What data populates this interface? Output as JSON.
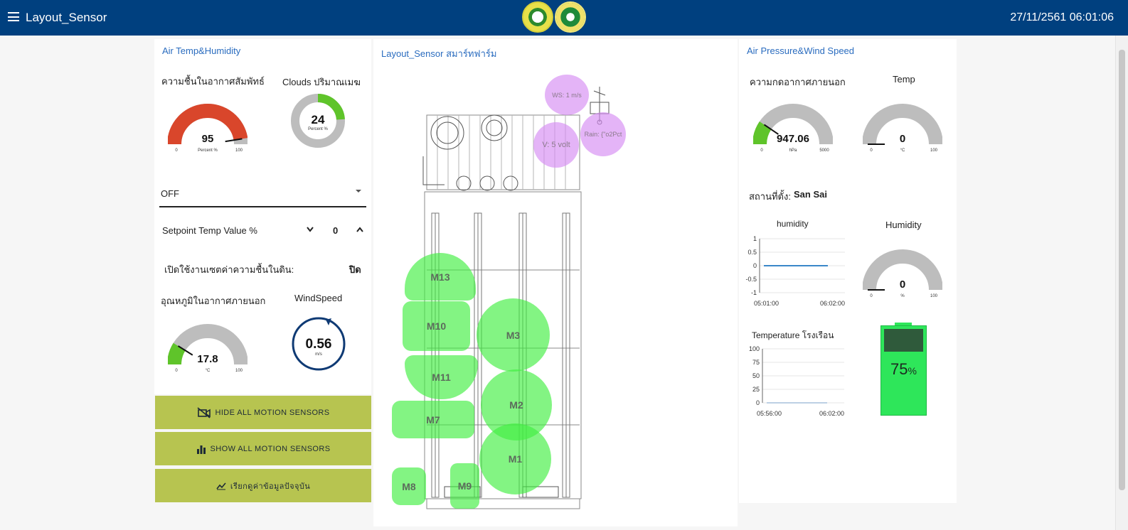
{
  "header": {
    "title": "Layout_Sensor",
    "datetime": "27/11/2561 06:01:06",
    "accent": "#00407f"
  },
  "left_panel": {
    "title": "Air Temp&Humidity",
    "humidity": {
      "label": "ความชื้นในอากาศสัมพัทธ์",
      "value": "95",
      "unit": "Percent %",
      "min": "0",
      "max": "100",
      "fraction": 0.95,
      "color": "#d9462b"
    },
    "clouds": {
      "label": "Clouds ปริมาณเมฆ",
      "value": "24",
      "unit": "Percent %",
      "fraction": 0.24,
      "color": "#5fc42a"
    },
    "mode_select": {
      "value": "OFF"
    },
    "setpoint": {
      "label": "Setpoint Temp Value %",
      "value": "0"
    },
    "soil_toggle": {
      "label": "เปิดใช้งานเซตค่าความชื้นในดิน:",
      "value": "ปิด"
    },
    "outside_temp": {
      "label": "อุณหภูมิในอากาศภายนอก",
      "value": "17.8",
      "unit": "°C",
      "min": "0",
      "max": "100",
      "fraction": 0.178,
      "color": "#5fc42a"
    },
    "windspeed": {
      "label": "WindSpeed",
      "value": "0.56",
      "unit": "m/s"
    },
    "buttons": {
      "hide": "HIDE ALL MOTION SENSORS",
      "show": "SHOW ALL MOTION SENSORS",
      "fetch": "เรียกดูค่าข้อมูลปัจจุบัน"
    }
  },
  "center_panel": {
    "title": "Layout_Sensor สมาร์ทฟาร์ม",
    "pink_sensors": {
      "ws": "WS: 1 m/s",
      "rain": "Rain: {\"o2Pct",
      "volt": "V: 5 volt"
    },
    "motion_sensors": [
      "M13",
      "M10",
      "M3",
      "M11",
      "M2",
      "M7",
      "M1",
      "M8",
      "M9"
    ]
  },
  "right_panel": {
    "title": "Air Pressure&Wind Speed",
    "pressure": {
      "label": "ความกดอากาศภายนอก",
      "value": "947.06",
      "unit": "hPa",
      "min": "0",
      "max": "5000",
      "fraction": 0.19,
      "color": "#5fc42a"
    },
    "temp": {
      "label": "Temp",
      "value": "0",
      "unit": "°C",
      "min": "0",
      "max": "100",
      "fraction": 0.0
    },
    "location": {
      "label": "สถานที่ตั้ง:",
      "value": "San Sai"
    },
    "humidity_chart": {
      "title": "humidity",
      "y_ticks": [
        "1",
        "0.5",
        "0",
        "-0.5",
        "-1"
      ],
      "x_ticks": [
        "05:01:00",
        "06:02:00"
      ]
    },
    "humidity_gauge": {
      "label": "Humidity",
      "value": "0",
      "unit": "%",
      "min": "0",
      "max": "100",
      "fraction": 0.0
    },
    "temperature_chart": {
      "title": "Temperature โรงเรือน",
      "y_ticks": [
        "100",
        "75",
        "50",
        "25",
        "0"
      ],
      "x_ticks": [
        "05:56:00",
        "06:02:00"
      ]
    },
    "battery": {
      "value": "75",
      "unit": "%",
      "fraction": 0.75,
      "color": "#2ee65a"
    }
  },
  "chart_data": [
    {
      "type": "line",
      "title": "humidity",
      "x": [
        "05:01:00",
        "06:02:00"
      ],
      "series": [
        {
          "values": [
            0,
            0
          ]
        }
      ],
      "ylim": [
        -1,
        1
      ]
    },
    {
      "type": "line",
      "title": "Temperature โรงเรือน",
      "x": [
        "05:56:00",
        "06:02:00"
      ],
      "series": [
        {
          "values": [
            0,
            0
          ]
        }
      ],
      "ylim": [
        0,
        100
      ]
    }
  ]
}
